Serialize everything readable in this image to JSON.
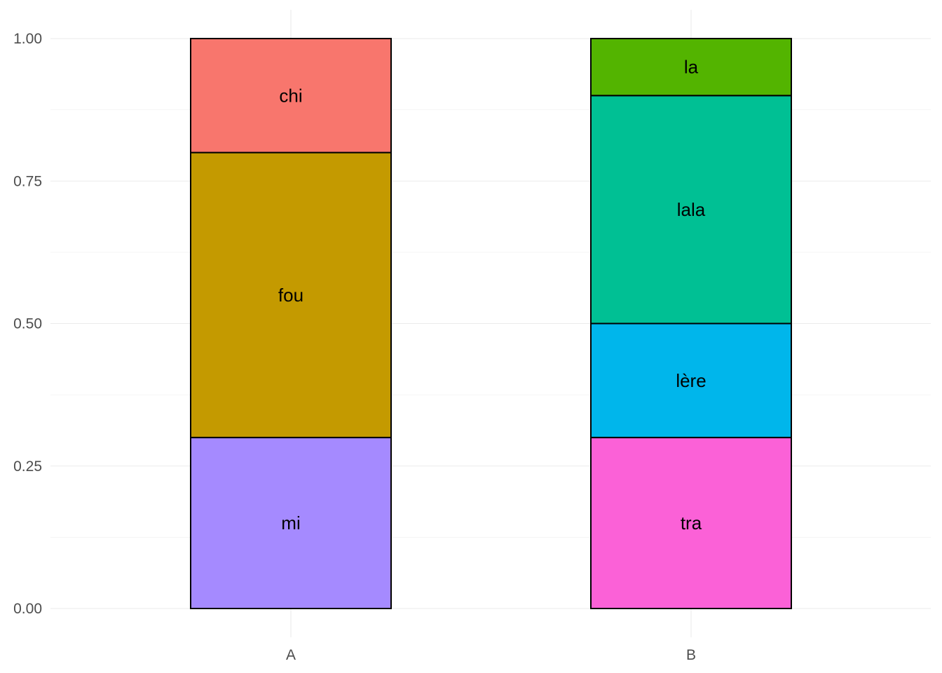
{
  "chart_data": {
    "type": "bar",
    "stacked": true,
    "categories": [
      "A",
      "B"
    ],
    "stacks": [
      {
        "category": "A",
        "segments": [
          {
            "label": "mi",
            "value": 0.3,
            "color": "#A58AFF"
          },
          {
            "label": "fou",
            "value": 0.5,
            "color": "#C49A00"
          },
          {
            "label": "chi",
            "value": 0.2,
            "color": "#F8766D"
          }
        ]
      },
      {
        "category": "B",
        "segments": [
          {
            "label": "tra",
            "value": 0.3,
            "color": "#FB61D7"
          },
          {
            "label": "lère",
            "value": 0.2,
            "color": "#00B6EB"
          },
          {
            "label": "lala",
            "value": 0.4,
            "color": "#00C094"
          },
          {
            "label": "la",
            "value": 0.1,
            "color": "#53B400"
          }
        ]
      }
    ],
    "y_ticks": [
      "0.00",
      "0.25",
      "0.50",
      "0.75",
      "1.00"
    ],
    "ylim": [
      -0.05,
      1.05
    ],
    "title": "",
    "xlabel": "",
    "ylabel": "",
    "grid": true,
    "legend": "none"
  }
}
